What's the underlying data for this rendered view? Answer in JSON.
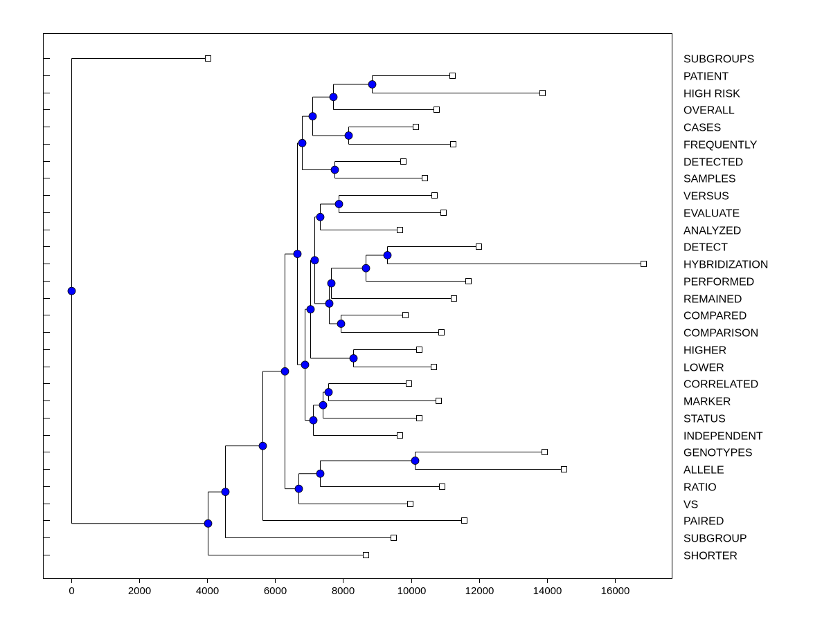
{
  "chart_data": {
    "type": "dendrogram",
    "orientation": "horizontal",
    "xlim": [
      -800,
      17600
    ],
    "x_ticks": [
      0,
      2000,
      4000,
      6000,
      8000,
      10000,
      12000,
      14000,
      16000
    ],
    "grid": false,
    "colors": {
      "node": "#0000ff",
      "line": "#000000",
      "leaf": "#ffffff"
    },
    "leaves_order": [
      "SUBGROUPS",
      "PATIENT",
      "HIGH RISK",
      "OVERALL",
      "CASES",
      "FREQUENTLY",
      "DETECTED",
      "SAMPLES",
      "VERSUS",
      "EVALUATE",
      "ANALYZED",
      "DETECT",
      "HYBRIDIZATION",
      "PERFORMED",
      "REMAINED",
      "COMPARED",
      "COMPARISON",
      "HIGHER",
      "LOWER",
      "CORRELATED",
      "MARKER",
      "STATUS",
      "INDEPENDENT",
      "GENOTYPES",
      "ALLELE",
      "RATIO",
      "VS",
      "PAIRED",
      "SUBGROUP",
      "SHORTER"
    ],
    "tree": {
      "height": 0,
      "children": [
        {
          "label": "SUBGROUPS",
          "value": 4015
        },
        {
          "height": 4015,
          "children": [
            {
              "height": 4525,
              "children": [
                {
                  "height": 5626,
                  "children": [
                    {
                      "height": 6278,
                      "children": [
                        {
                          "height": 6645,
                          "children": [
                            {
                              "height": 6788,
                              "children": [
                                {
                                  "height": 7093,
                                  "children": [
                                    {
                                      "height": 7705,
                                      "children": [
                                        {
                                          "height": 8846,
                                          "children": [
                                            {
                                              "label": "PATIENT",
                                              "value": 11211
                                            },
                                            {
                                              "label": "HIGH RISK",
                                              "value": 13861
                                            }
                                          ]
                                        },
                                        {
                                          "label": "OVERALL",
                                          "value": 10742
                                        }
                                      ]
                                    },
                                    {
                                      "height": 8153,
                                      "children": [
                                        {
                                          "label": "CASES",
                                          "value": 10130
                                        },
                                        {
                                          "label": "FREQUENTLY",
                                          "value": 11231
                                        }
                                      ]
                                    }
                                  ]
                                },
                                {
                                  "height": 7746,
                                  "children": [
                                    {
                                      "label": "DETECTED",
                                      "value": 9763
                                    },
                                    {
                                      "label": "SAMPLES",
                                      "value": 10395
                                    }
                                  ]
                                }
                              ]
                            },
                            {
                              "height": 6869,
                              "children": [
                                {
                                  "height": 7032,
                                  "children": [
                                    {
                                      "height": 7155,
                                      "children": [
                                        {
                                          "height": 7318,
                                          "children": [
                                            {
                                              "height": 7868,
                                              "children": [
                                                {
                                                  "label": "VERSUS",
                                                  "value": 10681
                                                },
                                                {
                                                  "label": "EVALUATE",
                                                  "value": 10946
                                                }
                                              ]
                                            },
                                            {
                                              "label": "ANALYZED",
                                              "value": 9662
                                            }
                                          ]
                                        },
                                        {
                                          "height": 7583,
                                          "children": [
                                            {
                                              "height": 7644,
                                              "children": [
                                                {
                                                  "height": 8663,
                                                  "children": [
                                                    {
                                                      "height": 9295,
                                                      "children": [
                                                        {
                                                          "label": "DETECT",
                                                          "value": 11985
                                                        },
                                                        {
                                                          "label": "HYBRIDIZATION",
                                                          "value": 16837
                                                        }
                                                      ]
                                                    },
                                                    {
                                                      "label": "PERFORMED",
                                                      "value": 11680
                                                    }
                                                  ]
                                                },
                                                {
                                                  "label": "REMAINED",
                                                  "value": 11251
                                                }
                                              ]
                                            },
                                            {
                                              "height": 7929,
                                              "children": [
                                                {
                                                  "label": "COMPARED",
                                                  "value": 9825
                                                },
                                                {
                                                  "label": "COMPARISON",
                                                  "value": 10885
                                                }
                                              ]
                                            }
                                          ]
                                        }
                                      ]
                                    },
                                    {
                                      "height": 8296,
                                      "children": [
                                        {
                                          "label": "HIGHER",
                                          "value": 10232
                                        },
                                        {
                                          "label": "LOWER",
                                          "value": 10660
                                        }
                                      ]
                                    }
                                  ]
                                },
                                {
                                  "height": 7114,
                                  "children": [
                                    {
                                      "height": 7399,
                                      "children": [
                                        {
                                          "height": 7562,
                                          "children": [
                                            {
                                              "label": "CORRELATED",
                                              "value": 9927
                                            },
                                            {
                                              "label": "MARKER",
                                              "value": 10803
                                            }
                                          ]
                                        },
                                        {
                                          "label": "STATUS",
                                          "value": 10232
                                        }
                                      ]
                                    },
                                    {
                                      "label": "INDEPENDENT",
                                      "value": 9662
                                    }
                                  ]
                                }
                              ]
                            }
                          ]
                        },
                        {
                          "height": 6686,
                          "children": [
                            {
                              "height": 7318,
                              "children": [
                                {
                                  "height": 10110,
                                  "children": [
                                    {
                                      "label": "GENOTYPES",
                                      "value": 13922
                                    },
                                    {
                                      "label": "ALLELE",
                                      "value": 14493
                                    }
                                  ]
                                },
                                {
                                  "label": "RATIO",
                                  "value": 10905
                                }
                              ]
                            },
                            {
                              "label": "VS",
                              "value": 9967
                            }
                          ]
                        }
                      ]
                    },
                    {
                      "label": "PAIRED",
                      "value": 11557
                    }
                  ]
                },
                {
                  "label": "SUBGROUP",
                  "value": 9478
                }
              ]
            },
            {
              "label": "SHORTER",
              "value": 8663
            }
          ]
        }
      ]
    }
  }
}
